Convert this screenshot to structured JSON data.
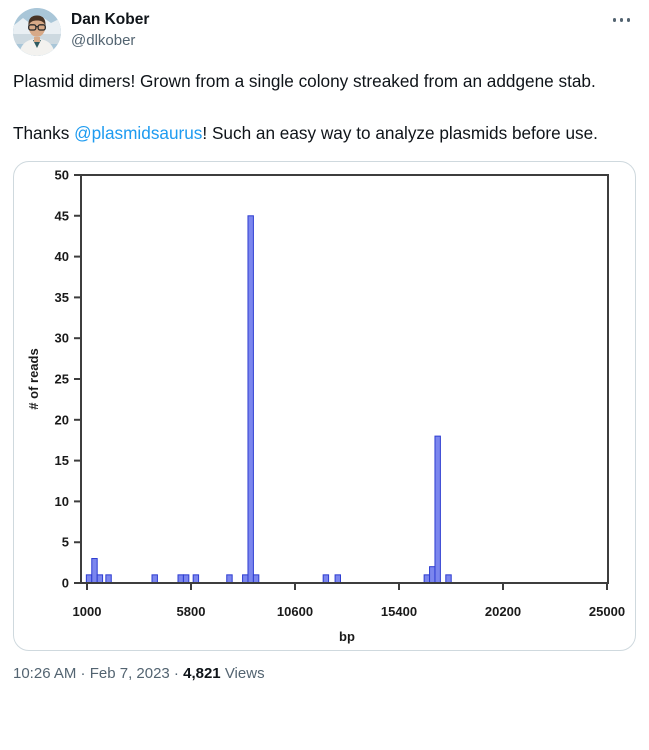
{
  "tweet": {
    "author": {
      "name": "Dan Kober",
      "handle": "@dlkober"
    },
    "body": {
      "paragraph1": "Plasmid dimers! Grown from a single colony streaked from an addgene stab.",
      "paragraph2_prefix": "Thanks ",
      "paragraph2_mention": "@plasmidsaurus",
      "paragraph2_suffix": "! Such an easy way to analyze plasmids before use."
    },
    "footer": {
      "meta": "10:26 AM · Feb 7, 2023 · ",
      "views_count": "4,821",
      "views_label": " Views"
    }
  },
  "colors": {
    "text_primary": "#0f1419",
    "text_secondary": "#536471",
    "link": "#1d9bf0",
    "card_border": "#cfd9de",
    "bar_fill": "#7b86ee",
    "bar_stroke": "#2d3cd1",
    "axis": "#3d3d3d"
  },
  "chart_data": {
    "type": "bar",
    "title": "",
    "xlabel": "bp",
    "ylabel": "# of reads",
    "xlim": [
      1000,
      25000
    ],
    "ylim": [
      0,
      50
    ],
    "x_ticks": [
      1000,
      5800,
      10600,
      15400,
      20200,
      25000
    ],
    "y_ticks": [
      0,
      5,
      10,
      15,
      20,
      25,
      30,
      35,
      40,
      45,
      50
    ],
    "grid": false,
    "legend": "none",
    "bin_width_bp": 250,
    "bars": [
      {
        "bp": 970,
        "count": 1
      },
      {
        "bp": 1220,
        "count": 3
      },
      {
        "bp": 1470,
        "count": 1
      },
      {
        "bp": 1870,
        "count": 1
      },
      {
        "bp": 4000,
        "count": 1
      },
      {
        "bp": 5200,
        "count": 1
      },
      {
        "bp": 5450,
        "count": 1
      },
      {
        "bp": 5900,
        "count": 1
      },
      {
        "bp": 7450,
        "count": 1
      },
      {
        "bp": 8180,
        "count": 1
      },
      {
        "bp": 8430,
        "count": 45
      },
      {
        "bp": 8680,
        "count": 1
      },
      {
        "bp": 11900,
        "count": 1
      },
      {
        "bp": 12450,
        "count": 1
      },
      {
        "bp": 16560,
        "count": 1
      },
      {
        "bp": 16810,
        "count": 2
      },
      {
        "bp": 17060,
        "count": 18
      },
      {
        "bp": 17560,
        "count": 1
      }
    ]
  }
}
